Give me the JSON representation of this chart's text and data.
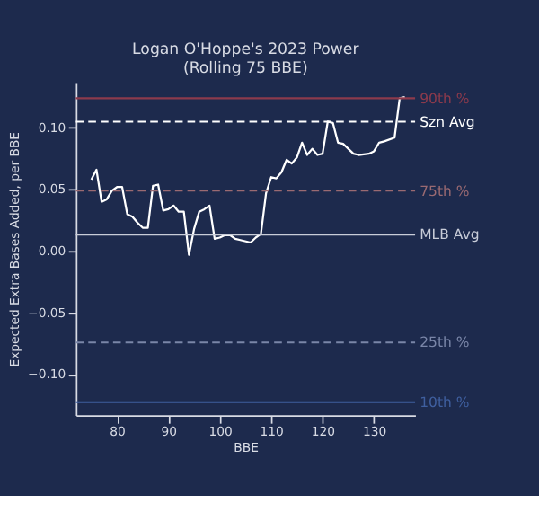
{
  "chart_data": {
    "type": "line",
    "title": [
      "Logan O'Hoppe's 2023 Power",
      "(Rolling 75 BBE)"
    ],
    "xlabel": "BBE",
    "ylabel": "Expected Extra Bases Added, per BBE",
    "x": [
      75,
      76,
      77,
      78,
      79,
      80,
      81,
      82,
      83,
      84,
      85,
      86,
      87,
      88,
      89,
      90,
      91,
      92,
      93,
      94,
      95,
      96,
      97,
      98,
      99,
      100,
      101,
      102,
      103,
      104,
      106,
      107,
      108,
      109,
      110,
      111,
      112,
      113,
      114,
      115,
      116,
      117,
      118,
      119,
      120,
      121,
      122,
      123,
      124,
      125,
      126,
      127,
      129,
      130,
      131,
      132,
      134,
      135,
      136
    ],
    "series": [
      {
        "color": "#ffffff",
        "values": [
          0.058,
          0.066,
          0.04,
          0.042,
          0.049,
          0.052,
          0.052,
          0.03,
          0.028,
          0.023,
          0.019,
          0.019,
          0.053,
          0.054,
          0.033,
          0.034,
          0.037,
          0.032,
          0.032,
          -0.003,
          0.018,
          0.032,
          0.034,
          0.037,
          0.01,
          0.011,
          0.013,
          0.013,
          0.01,
          0.009,
          0.007,
          0.011,
          0.014,
          0.047,
          0.06,
          0.059,
          0.064,
          0.074,
          0.071,
          0.076,
          0.088,
          0.078,
          0.083,
          0.078,
          0.079,
          0.105,
          0.104,
          0.088,
          0.087,
          0.083,
          0.079,
          0.078,
          0.079,
          0.081,
          0.088,
          0.089,
          0.092,
          0.124,
          0.125
        ]
      }
    ],
    "xlim": [
      72,
      138
    ],
    "xticks": [
      80,
      90,
      100,
      110,
      120,
      130
    ],
    "ylim": [
      -0.133,
      0.137
    ],
    "yticks": [
      {
        "value": -0.1,
        "label": "−0.10"
      },
      {
        "value": -0.05,
        "label": "−0.05"
      },
      {
        "value": 0,
        "label": "0.00"
      },
      {
        "value": 0.05,
        "label": "0.05"
      },
      {
        "value": 0.1,
        "label": "0.10"
      }
    ],
    "grid": false,
    "line_style": "solid",
    "marker": "none",
    "ref_lines": [
      {
        "axis": "y",
        "value": 0.124,
        "label": "90th %",
        "color": "#8c3a4c",
        "line_style": "solid"
      },
      {
        "axis": "y",
        "value": 0.105,
        "label": "Szn Avg",
        "color": "#ffffff",
        "line_style": "dashed"
      },
      {
        "axis": "y",
        "value": 0.049,
        "label": "75th %",
        "color": "#9a6a72",
        "line_style": "dashed"
      },
      {
        "axis": "y",
        "value": 0.0134,
        "label": "MLB Avg",
        "color": "#c8ccd8",
        "line_style": "solid"
      },
      {
        "axis": "y",
        "value": -0.074,
        "label": "25th %",
        "color": "#7a86a8",
        "line_style": "dashed"
      },
      {
        "axis": "y",
        "value": -0.1225,
        "label": "10th %",
        "color": "#3f5f9f",
        "line_style": "solid"
      }
    ]
  }
}
